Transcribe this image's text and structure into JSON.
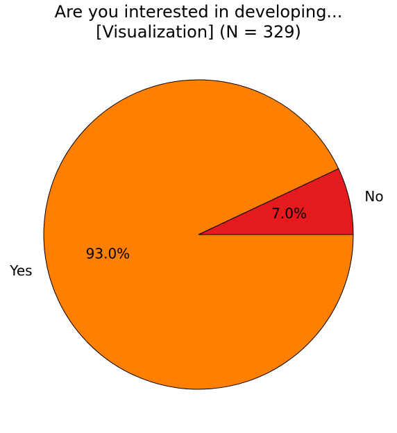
{
  "chart_data": {
    "type": "pie",
    "title": [
      "Are you interested in developing...",
      "[Visualization] (N = 329)"
    ],
    "categories": [
      "No",
      "Yes"
    ],
    "values": [
      7.0,
      93.0
    ],
    "value_labels": [
      "7.0%",
      "93.0%"
    ],
    "colors": [
      "#e41a1c",
      "#ff7f00"
    ]
  }
}
